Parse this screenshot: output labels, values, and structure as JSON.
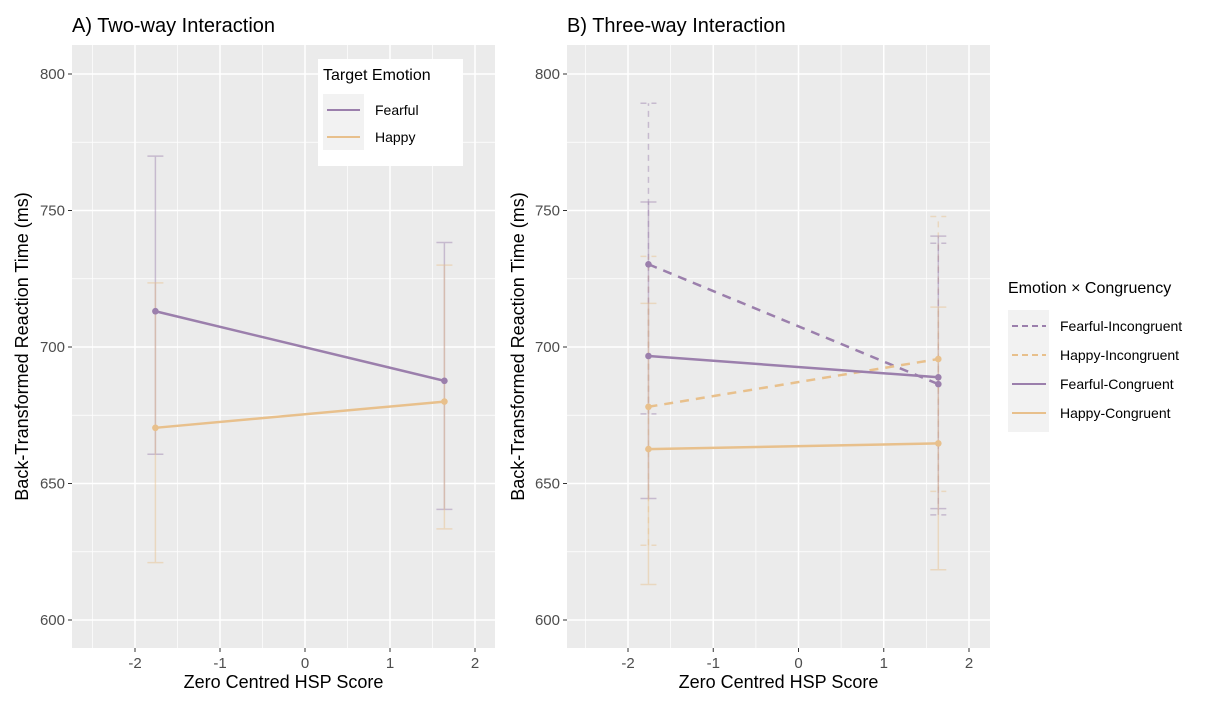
{
  "colors": {
    "fearful": "#9b7fac",
    "happy": "#e8c08c",
    "panel_bg": "#ebebeb",
    "grid": "#ffffff"
  },
  "chart_data": [
    {
      "type": "line",
      "title": "A) Two-way Interaction",
      "xlabel": "Zero Centred HSP Score",
      "ylabel": "Back-Transformed Reaction Time (ms)",
      "xlim": [
        -2.7,
        2.3
      ],
      "ylim": [
        590,
        810
      ],
      "xticks": [
        "-2",
        "-1",
        "0",
        "1",
        "2"
      ],
      "yticks": [
        "600",
        "650",
        "700",
        "750",
        "800"
      ],
      "grid": true,
      "legend": {
        "title": "Target Emotion",
        "placement": "top-right inside"
      },
      "x": [
        -1.76,
        1.64
      ],
      "series": [
        {
          "name": "Fearful",
          "color": "#9b7fac",
          "dash": false,
          "values": [
            713.1,
            687.6
          ],
          "lower": [
            660.7,
            640.5
          ],
          "upper": [
            769.9,
            738.3
          ]
        },
        {
          "name": "Happy",
          "color": "#e8c08c",
          "dash": false,
          "values": [
            670.4,
            680.0
          ],
          "lower": [
            621.0,
            633.4
          ],
          "upper": [
            723.5,
            730.0
          ]
        }
      ]
    },
    {
      "type": "line",
      "title": "B) Three-way Interaction",
      "xlabel": "Zero Centred HSP Score",
      "ylabel": "Back-Transformed Reaction Time (ms)",
      "xlim": [
        -2.7,
        2.3
      ],
      "ylim": [
        590,
        810
      ],
      "xticks": [
        "-2",
        "-1",
        "0",
        "1",
        "2"
      ],
      "yticks": [
        "600",
        "650",
        "700",
        "750",
        "800"
      ],
      "grid": true,
      "legend": {
        "title": "Emotion × Congruency",
        "placement": "right outside"
      },
      "x": [
        -1.76,
        1.64
      ],
      "series": [
        {
          "name": "Fearful-Incongruent",
          "color": "#9b7fac",
          "dash": true,
          "values": [
            730.3,
            686.4
          ],
          "lower": [
            675.5,
            638.5
          ],
          "upper": [
            789.3,
            738.0
          ]
        },
        {
          "name": "Happy-Incongruent",
          "color": "#e8c08c",
          "dash": true,
          "values": [
            678.1,
            695.6
          ],
          "lower": [
            627.4,
            647.1
          ],
          "upper": [
            733.2,
            747.8
          ]
        },
        {
          "name": "Fearful-Congruent",
          "color": "#9b7fac",
          "dash": false,
          "values": [
            696.7,
            688.9
          ],
          "lower": [
            644.5,
            640.8
          ],
          "upper": [
            753.1,
            740.6
          ]
        },
        {
          "name": "Happy-Congruent",
          "color": "#e8c08c",
          "dash": false,
          "values": [
            662.6,
            664.7
          ],
          "lower": [
            613.0,
            618.4
          ],
          "upper": [
            716.0,
            714.6
          ]
        }
      ]
    }
  ]
}
